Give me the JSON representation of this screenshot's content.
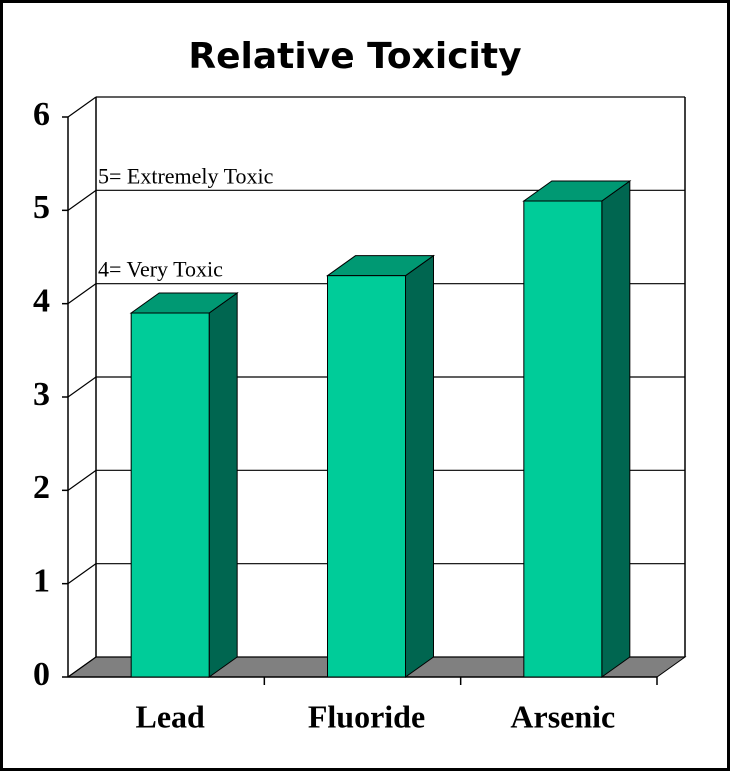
{
  "chart_data": {
    "type": "bar3d",
    "title": "Relative Toxicity",
    "categories": [
      "Lead",
      "Fluoride",
      "Arsenic"
    ],
    "values": [
      3.9,
      4.3,
      5.1
    ],
    "color": "#00cc99",
    "ylim": [
      0,
      6
    ],
    "yticks": [
      0,
      1,
      2,
      3,
      4,
      5,
      6
    ],
    "grid": true,
    "annotations": [
      "5= Extremely Toxic",
      "4= Very Toxic"
    ]
  }
}
